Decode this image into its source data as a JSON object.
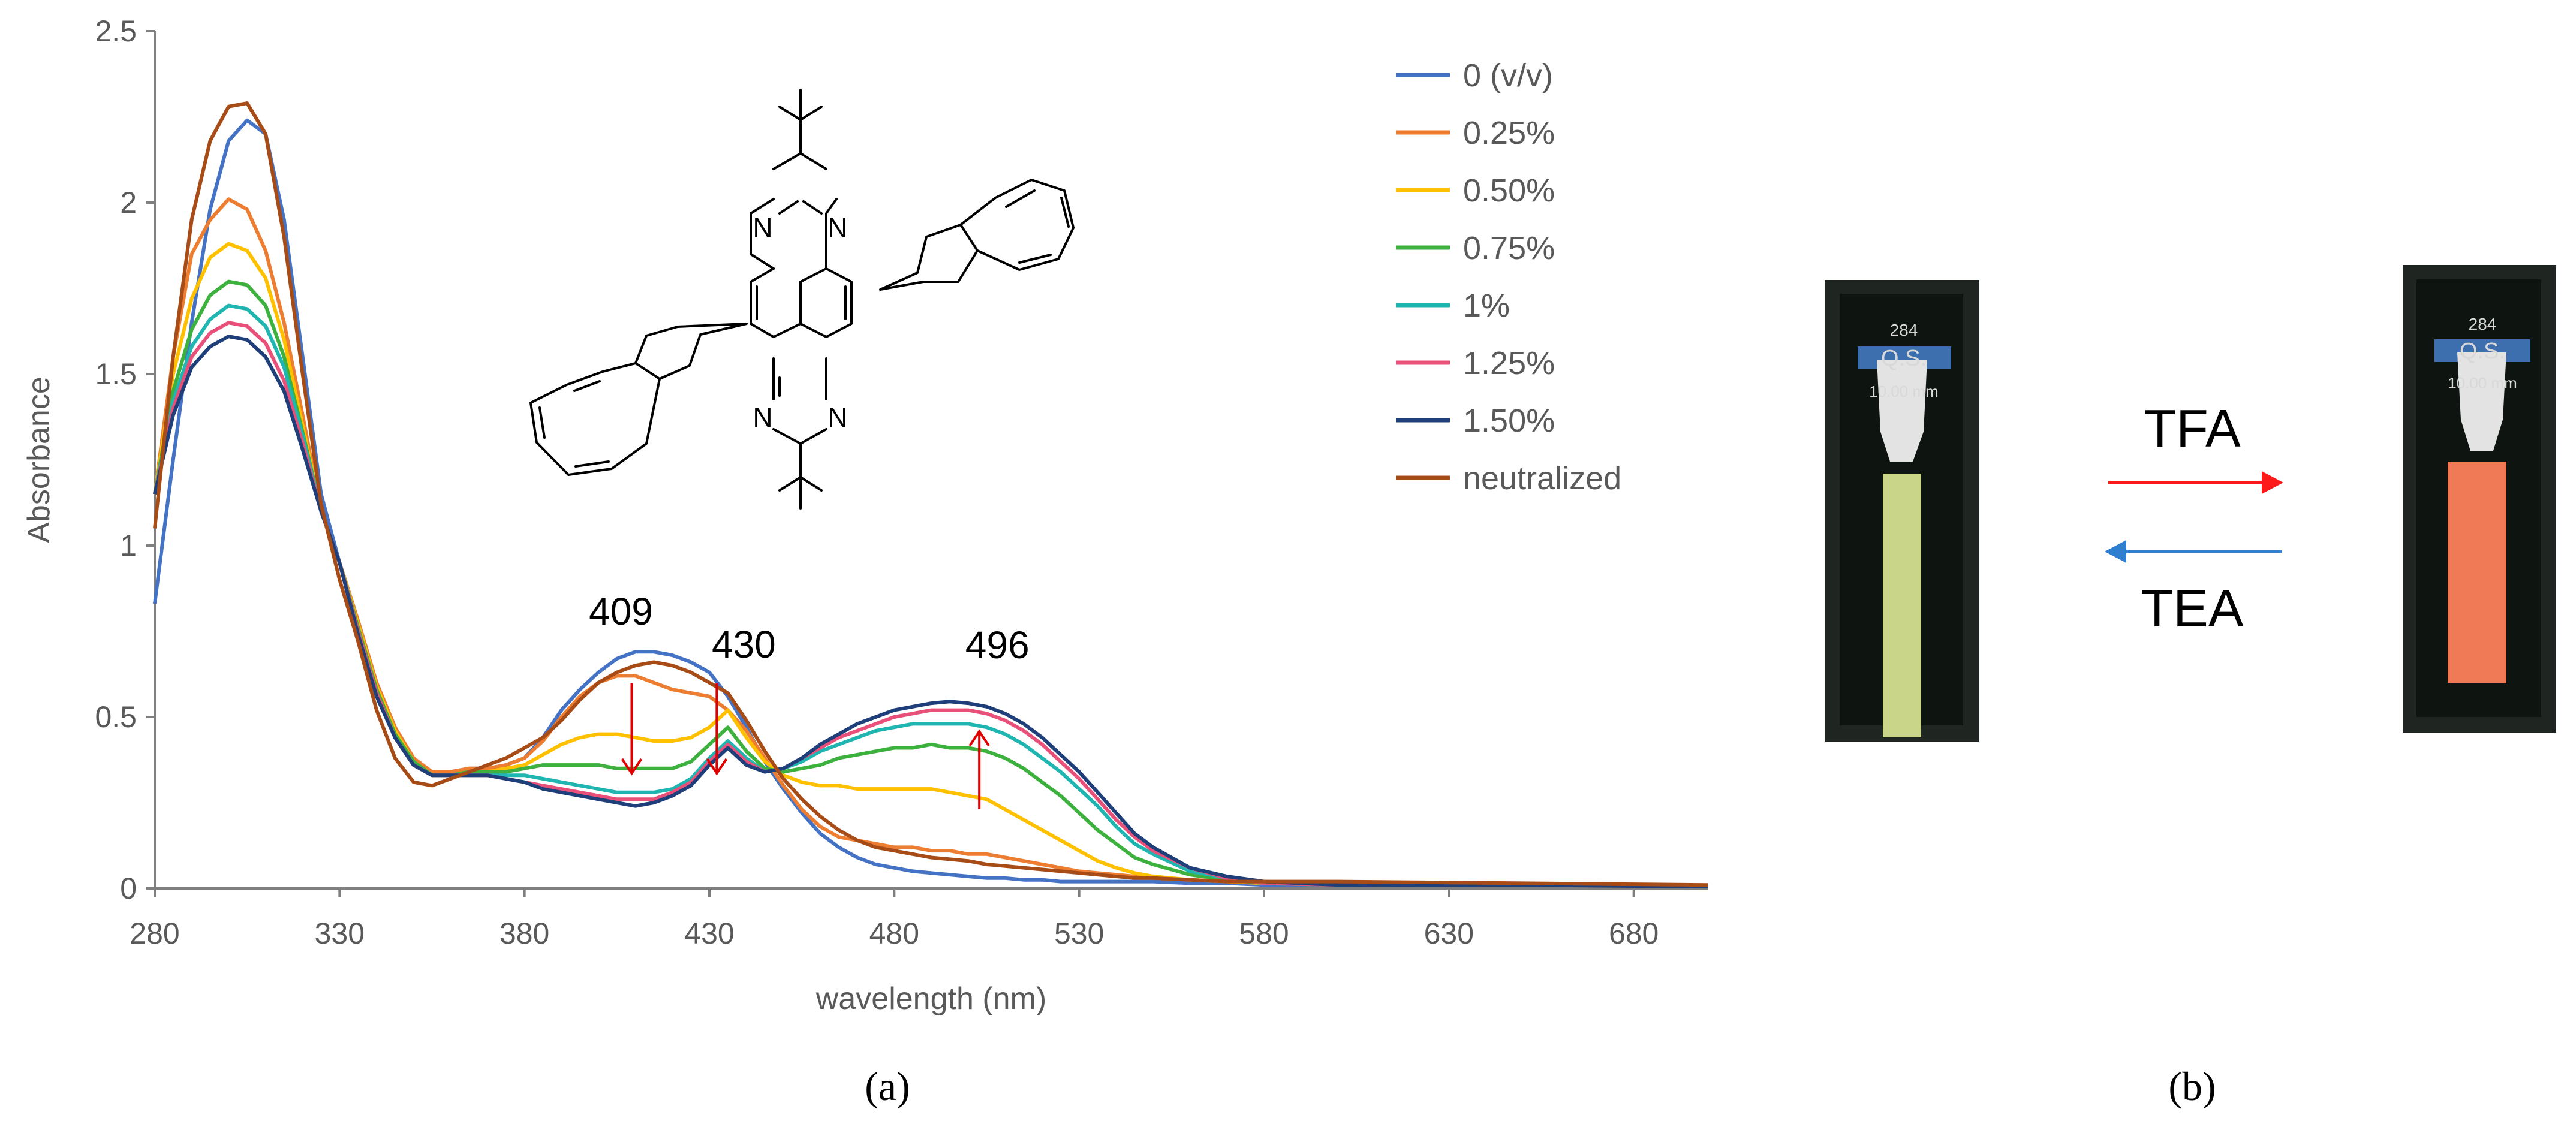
{
  "chart_data": {
    "type": "line",
    "xlabel": "wavelength (nm)",
    "ylabel": "Absorbance",
    "xlim": [
      280,
      700
    ],
    "ylim": [
      0,
      2.5
    ],
    "x_ticks": [
      "280",
      "330",
      "380",
      "430",
      "480",
      "530",
      "580",
      "630",
      "680"
    ],
    "y_ticks": [
      "0",
      "0.5",
      "1",
      "1.5",
      "2",
      "2.5"
    ],
    "grid": false,
    "legend_position": "top-right",
    "x": [
      280,
      285,
      290,
      295,
      300,
      305,
      310,
      315,
      320,
      325,
      330,
      335,
      340,
      345,
      350,
      355,
      360,
      365,
      370,
      375,
      380,
      385,
      390,
      395,
      400,
      405,
      410,
      415,
      420,
      425,
      430,
      435,
      440,
      445,
      450,
      455,
      460,
      465,
      470,
      475,
      480,
      485,
      490,
      495,
      500,
      505,
      510,
      515,
      520,
      525,
      530,
      535,
      540,
      545,
      550,
      560,
      570,
      580,
      600,
      650,
      700
    ],
    "series": [
      {
        "name": "0   (v/v)",
        "color": "#4472C4",
        "values": [
          0.83,
          1.25,
          1.65,
          1.98,
          2.18,
          2.24,
          2.2,
          1.95,
          1.55,
          1.15,
          0.95,
          0.78,
          0.6,
          0.47,
          0.37,
          0.33,
          0.34,
          0.35,
          0.35,
          0.36,
          0.38,
          0.44,
          0.52,
          0.58,
          0.63,
          0.67,
          0.69,
          0.69,
          0.68,
          0.66,
          0.63,
          0.56,
          0.47,
          0.37,
          0.29,
          0.22,
          0.16,
          0.12,
          0.09,
          0.07,
          0.06,
          0.05,
          0.045,
          0.04,
          0.035,
          0.03,
          0.03,
          0.025,
          0.025,
          0.02,
          0.02,
          0.02,
          0.02,
          0.02,
          0.02,
          0.015,
          0.015,
          0.01,
          0.01,
          0.01,
          0.005
        ]
      },
      {
        "name": "0.25%",
        "color": "#ED7D31",
        "values": [
          1.15,
          1.55,
          1.85,
          1.95,
          2.01,
          1.98,
          1.86,
          1.65,
          1.38,
          1.1,
          0.95,
          0.78,
          0.6,
          0.47,
          0.38,
          0.34,
          0.34,
          0.35,
          0.35,
          0.36,
          0.38,
          0.43,
          0.5,
          0.56,
          0.6,
          0.62,
          0.62,
          0.6,
          0.58,
          0.57,
          0.56,
          0.52,
          0.46,
          0.38,
          0.3,
          0.23,
          0.18,
          0.15,
          0.14,
          0.13,
          0.12,
          0.12,
          0.11,
          0.11,
          0.1,
          0.1,
          0.09,
          0.08,
          0.07,
          0.06,
          0.05,
          0.045,
          0.04,
          0.035,
          0.03,
          0.025,
          0.02,
          0.015,
          0.01,
          0.01,
          0.005
        ]
      },
      {
        "name": "0.50%",
        "color": "#FFC000",
        "values": [
          1.15,
          1.5,
          1.72,
          1.84,
          1.88,
          1.86,
          1.78,
          1.6,
          1.35,
          1.1,
          0.95,
          0.77,
          0.59,
          0.46,
          0.37,
          0.33,
          0.33,
          0.34,
          0.34,
          0.35,
          0.36,
          0.39,
          0.42,
          0.44,
          0.45,
          0.45,
          0.44,
          0.43,
          0.43,
          0.44,
          0.47,
          0.52,
          0.44,
          0.37,
          0.33,
          0.31,
          0.3,
          0.3,
          0.29,
          0.29,
          0.29,
          0.29,
          0.29,
          0.28,
          0.27,
          0.26,
          0.23,
          0.2,
          0.17,
          0.14,
          0.11,
          0.08,
          0.06,
          0.045,
          0.035,
          0.025,
          0.02,
          0.015,
          0.01,
          0.01,
          0.005
        ]
      },
      {
        "name": "0.75%",
        "color": "#3DB13D",
        "values": [
          1.15,
          1.45,
          1.63,
          1.73,
          1.77,
          1.76,
          1.7,
          1.55,
          1.33,
          1.1,
          0.95,
          0.76,
          0.58,
          0.45,
          0.37,
          0.33,
          0.33,
          0.34,
          0.34,
          0.34,
          0.35,
          0.36,
          0.36,
          0.36,
          0.36,
          0.35,
          0.35,
          0.35,
          0.35,
          0.37,
          0.42,
          0.47,
          0.4,
          0.35,
          0.34,
          0.35,
          0.36,
          0.38,
          0.39,
          0.4,
          0.41,
          0.41,
          0.42,
          0.41,
          0.41,
          0.4,
          0.38,
          0.35,
          0.31,
          0.27,
          0.22,
          0.17,
          0.13,
          0.09,
          0.07,
          0.04,
          0.025,
          0.015,
          0.01,
          0.01,
          0.005
        ]
      },
      {
        "name": "1%",
        "color": "#1FB5B0",
        "values": [
          1.15,
          1.42,
          1.58,
          1.66,
          1.7,
          1.69,
          1.64,
          1.52,
          1.32,
          1.1,
          0.95,
          0.75,
          0.57,
          0.44,
          0.36,
          0.33,
          0.33,
          0.33,
          0.33,
          0.33,
          0.33,
          0.32,
          0.31,
          0.3,
          0.29,
          0.28,
          0.28,
          0.28,
          0.29,
          0.32,
          0.38,
          0.43,
          0.38,
          0.34,
          0.35,
          0.37,
          0.4,
          0.42,
          0.44,
          0.46,
          0.47,
          0.48,
          0.48,
          0.48,
          0.48,
          0.47,
          0.45,
          0.42,
          0.38,
          0.34,
          0.29,
          0.24,
          0.18,
          0.13,
          0.1,
          0.05,
          0.03,
          0.015,
          0.01,
          0.01,
          0.005
        ]
      },
      {
        "name": "1.25%",
        "color": "#E8507A",
        "values": [
          1.15,
          1.4,
          1.55,
          1.62,
          1.65,
          1.64,
          1.59,
          1.48,
          1.3,
          1.1,
          0.95,
          0.75,
          0.57,
          0.44,
          0.36,
          0.33,
          0.33,
          0.33,
          0.33,
          0.32,
          0.31,
          0.3,
          0.29,
          0.28,
          0.27,
          0.26,
          0.26,
          0.26,
          0.28,
          0.31,
          0.37,
          0.42,
          0.37,
          0.34,
          0.35,
          0.38,
          0.41,
          0.44,
          0.46,
          0.48,
          0.5,
          0.51,
          0.52,
          0.52,
          0.52,
          0.51,
          0.49,
          0.46,
          0.42,
          0.37,
          0.32,
          0.26,
          0.2,
          0.15,
          0.11,
          0.06,
          0.03,
          0.015,
          0.01,
          0.01,
          0.005
        ]
      },
      {
        "name": "1.50%",
        "color": "#1F3F7A",
        "values": [
          1.15,
          1.38,
          1.52,
          1.58,
          1.61,
          1.6,
          1.55,
          1.45,
          1.28,
          1.1,
          0.95,
          0.74,
          0.56,
          0.44,
          0.36,
          0.33,
          0.33,
          0.33,
          0.33,
          0.32,
          0.31,
          0.29,
          0.28,
          0.27,
          0.26,
          0.25,
          0.24,
          0.25,
          0.27,
          0.3,
          0.36,
          0.41,
          0.36,
          0.34,
          0.35,
          0.38,
          0.42,
          0.45,
          0.48,
          0.5,
          0.52,
          0.53,
          0.54,
          0.545,
          0.54,
          0.53,
          0.51,
          0.48,
          0.44,
          0.39,
          0.34,
          0.28,
          0.22,
          0.16,
          0.12,
          0.06,
          0.035,
          0.02,
          0.01,
          0.01,
          0.005
        ]
      },
      {
        "name": "neutralized",
        "color": "#A84C17",
        "values": [
          1.05,
          1.55,
          1.95,
          2.18,
          2.28,
          2.29,
          2.2,
          1.9,
          1.5,
          1.12,
          0.9,
          0.72,
          0.52,
          0.38,
          0.31,
          0.3,
          0.32,
          0.34,
          0.36,
          0.38,
          0.41,
          0.44,
          0.49,
          0.55,
          0.6,
          0.63,
          0.65,
          0.66,
          0.65,
          0.63,
          0.6,
          0.57,
          0.49,
          0.4,
          0.32,
          0.26,
          0.21,
          0.17,
          0.14,
          0.12,
          0.11,
          0.1,
          0.09,
          0.085,
          0.08,
          0.07,
          0.065,
          0.06,
          0.055,
          0.05,
          0.045,
          0.04,
          0.035,
          0.03,
          0.03,
          0.025,
          0.02,
          0.02,
          0.02,
          0.015,
          0.01
        ]
      }
    ],
    "annotations": [
      {
        "text": "409",
        "x": 409,
        "direction": "down"
      },
      {
        "text": "430",
        "x": 432,
        "direction": "down"
      },
      {
        "text": "496",
        "x": 503,
        "direction": "up"
      }
    ]
  },
  "structure_atoms": [
    "N",
    "N",
    "N",
    "N"
  ],
  "panel_labels": {
    "a": "(a)",
    "b": "(b)"
  },
  "photo": {
    "left_cuvette": {
      "text": [
        "284",
        "Q.S.",
        "10.00 mm"
      ],
      "solution_color": "#c9d68a"
    },
    "right_cuvette": {
      "text": [
        "284",
        "Q.S.",
        "10.00 mm"
      ],
      "solution_color": "#f07a55"
    },
    "forward_label": "TFA",
    "forward_color": "#ff1a1a",
    "reverse_label": "TEA",
    "reverse_color": "#2f7fd1"
  }
}
